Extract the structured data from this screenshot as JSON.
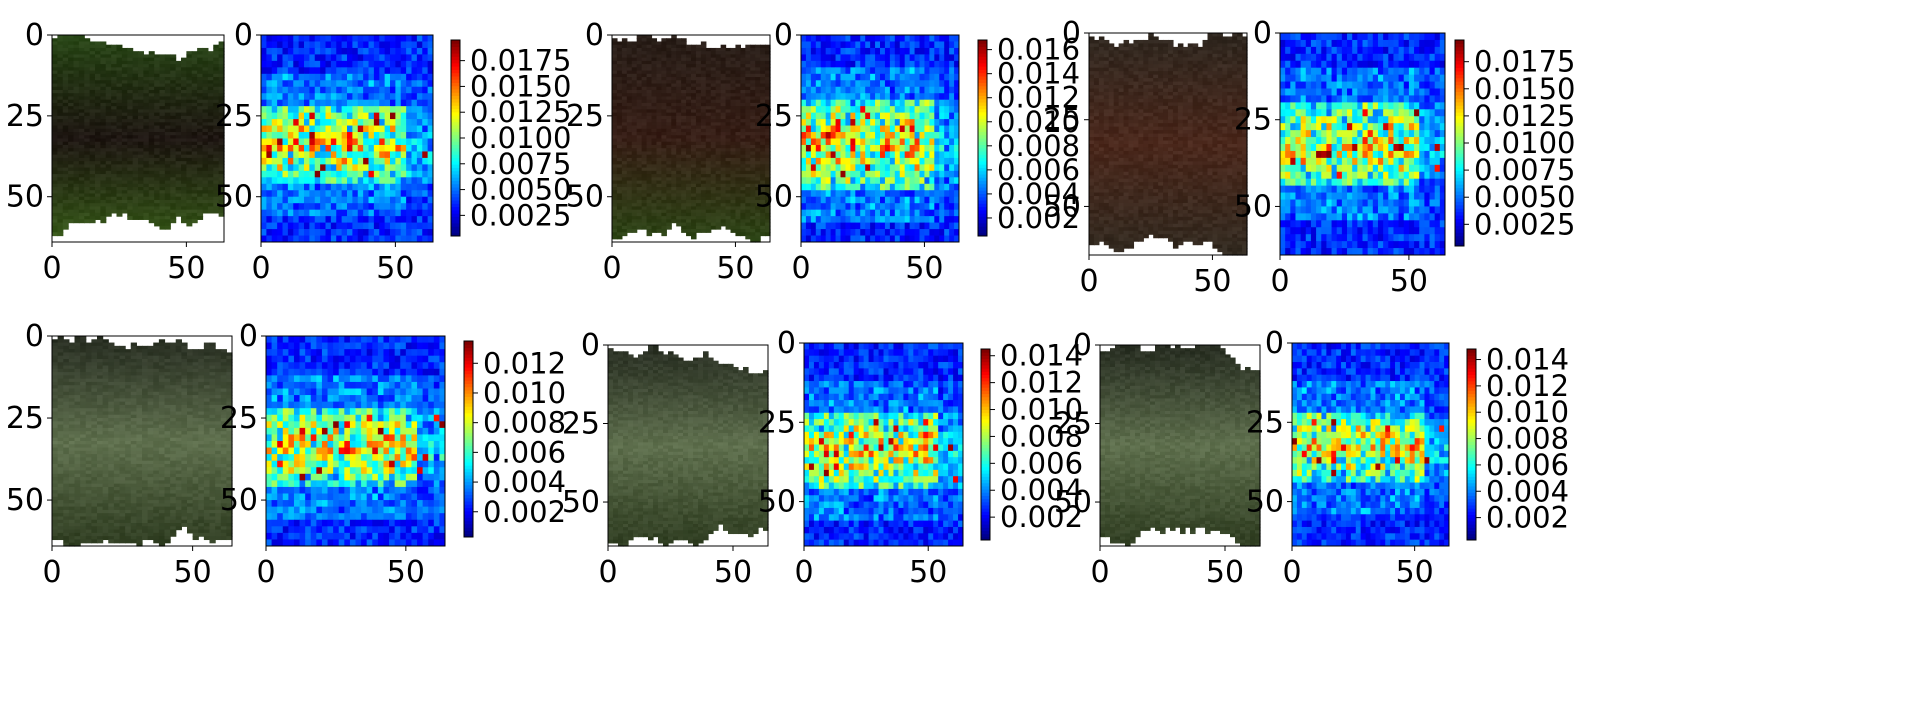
{
  "figure": {
    "rows": 2,
    "panels_per_row": 3,
    "description_note": ""
  },
  "colormap": "jet",
  "chart_data": [
    {
      "type": "heatmap",
      "panel": "row1-col1",
      "image_axes": {
        "xticks": [
          "0",
          "50"
        ],
        "yticks": [
          "0",
          "25",
          "50"
        ],
        "xlim": [
          0,
          64
        ],
        "ylim": [
          64,
          0
        ]
      },
      "heatmap_axes": {
        "xticks": [
          "0",
          "50"
        ],
        "yticks": [
          "0",
          "25",
          "50"
        ],
        "xlim": [
          0,
          64
        ],
        "ylim": [
          64,
          0
        ]
      },
      "colorbar": {
        "min": 0.0005,
        "max": 0.0195,
        "ticks": [
          0.0025,
          0.005,
          0.0075,
          0.01,
          0.0125,
          0.015,
          0.0175
        ],
        "tick_labels": [
          "0.0025",
          "0.0050",
          "0.0075",
          "0.0100",
          "0.0125",
          "0.0150",
          "0.0175"
        ]
      },
      "image_tone": "green-with-dark-center",
      "hot_band_rows": [
        22,
        46
      ],
      "title": ""
    },
    {
      "type": "heatmap",
      "panel": "row1-col2",
      "image_axes": {
        "xticks": [
          "0",
          "50"
        ],
        "yticks": [
          "0",
          "25",
          "50"
        ],
        "xlim": [
          0,
          64
        ],
        "ylim": [
          64,
          0
        ]
      },
      "heatmap_axes": {
        "xticks": [
          "0",
          "50"
        ],
        "yticks": [
          "0",
          "25",
          "50"
        ],
        "xlim": [
          0,
          64
        ],
        "ylim": [
          64,
          0
        ]
      },
      "colorbar": {
        "min": 0.0005,
        "max": 0.0168,
        "ticks": [
          0.002,
          0.004,
          0.006,
          0.008,
          0.01,
          0.012,
          0.014,
          0.016
        ],
        "tick_labels": [
          "0.002",
          "0.004",
          "0.006",
          "0.008",
          "0.010",
          "0.012",
          "0.014",
          "0.016"
        ]
      },
      "image_tone": "dark-brown-with-green-lower",
      "hot_band_rows": [
        20,
        48
      ],
      "title": ""
    },
    {
      "type": "heatmap",
      "panel": "row1-col3",
      "image_axes": {
        "xticks": [
          "0",
          "50"
        ],
        "yticks": [
          "0",
          "25",
          "50"
        ],
        "xlim": [
          0,
          64
        ],
        "ylim": [
          64,
          0
        ]
      },
      "heatmap_axes": {
        "xticks": [
          "0",
          "50"
        ],
        "yticks": [
          "0",
          "25",
          "50"
        ],
        "xlim": [
          0,
          64
        ],
        "ylim": [
          64,
          0
        ]
      },
      "colorbar": {
        "min": 0.0005,
        "max": 0.0195,
        "ticks": [
          0.0025,
          0.005,
          0.0075,
          0.01,
          0.0125,
          0.015,
          0.0175
        ],
        "tick_labels": [
          "0.0025",
          "0.0050",
          "0.0075",
          "0.0100",
          "0.0125",
          "0.0150",
          "0.0175"
        ]
      },
      "image_tone": "brown",
      "hot_band_rows": [
        20,
        44
      ],
      "title": ""
    },
    {
      "type": "heatmap",
      "panel": "row2-col1",
      "image_axes": {
        "xticks": [
          "0",
          "50"
        ],
        "yticks": [
          "0",
          "25",
          "50"
        ],
        "xlim": [
          0,
          64
        ],
        "ylim": [
          64,
          0
        ]
      },
      "heatmap_axes": {
        "xticks": [
          "0",
          "50"
        ],
        "yticks": [
          "0",
          "25",
          "50"
        ],
        "xlim": [
          0,
          64
        ],
        "ylim": [
          64,
          0
        ]
      },
      "colorbar": {
        "min": 0.0003,
        "max": 0.0135,
        "ticks": [
          0.002,
          0.004,
          0.006,
          0.008,
          0.01,
          0.012
        ],
        "tick_labels": [
          "0.002",
          "0.004",
          "0.006",
          "0.008",
          "0.010",
          "0.012"
        ]
      },
      "image_tone": "olive-green",
      "hot_band_rows": [
        22,
        46
      ],
      "title": ""
    },
    {
      "type": "heatmap",
      "panel": "row2-col2",
      "image_axes": {
        "xticks": [
          "0",
          "50"
        ],
        "yticks": [
          "0",
          "25",
          "50"
        ],
        "xlim": [
          0,
          64
        ],
        "ylim": [
          64,
          0
        ]
      },
      "heatmap_axes": {
        "xticks": [
          "0",
          "50"
        ],
        "yticks": [
          "0",
          "25",
          "50"
        ],
        "xlim": [
          0,
          64
        ],
        "ylim": [
          64,
          0
        ]
      },
      "colorbar": {
        "min": 0.0003,
        "max": 0.0145,
        "ticks": [
          0.002,
          0.004,
          0.006,
          0.008,
          0.01,
          0.012,
          0.014
        ],
        "tick_labels": [
          "0.002",
          "0.004",
          "0.006",
          "0.008",
          "0.010",
          "0.012",
          "0.014"
        ]
      },
      "image_tone": "olive-green",
      "hot_band_rows": [
        22,
        46
      ],
      "title": ""
    },
    {
      "type": "heatmap",
      "panel": "row2-col3",
      "image_axes": {
        "xticks": [
          "0",
          "50"
        ],
        "yticks": [
          "0",
          "25",
          "50"
        ],
        "xlim": [
          0,
          64
        ],
        "ylim": [
          64,
          0
        ]
      },
      "heatmap_axes": {
        "xticks": [
          "0",
          "50"
        ],
        "yticks": [
          "0",
          "25",
          "50"
        ],
        "xlim": [
          0,
          64
        ],
        "ylim": [
          64,
          0
        ]
      },
      "colorbar": {
        "min": 0.0003,
        "max": 0.0148,
        "ticks": [
          0.002,
          0.004,
          0.006,
          0.008,
          0.01,
          0.012,
          0.014
        ],
        "tick_labels": [
          "0.002",
          "0.004",
          "0.006",
          "0.008",
          "0.010",
          "0.012",
          "0.014"
        ]
      },
      "image_tone": "olive-green",
      "hot_band_rows": [
        22,
        44
      ],
      "title": ""
    }
  ]
}
